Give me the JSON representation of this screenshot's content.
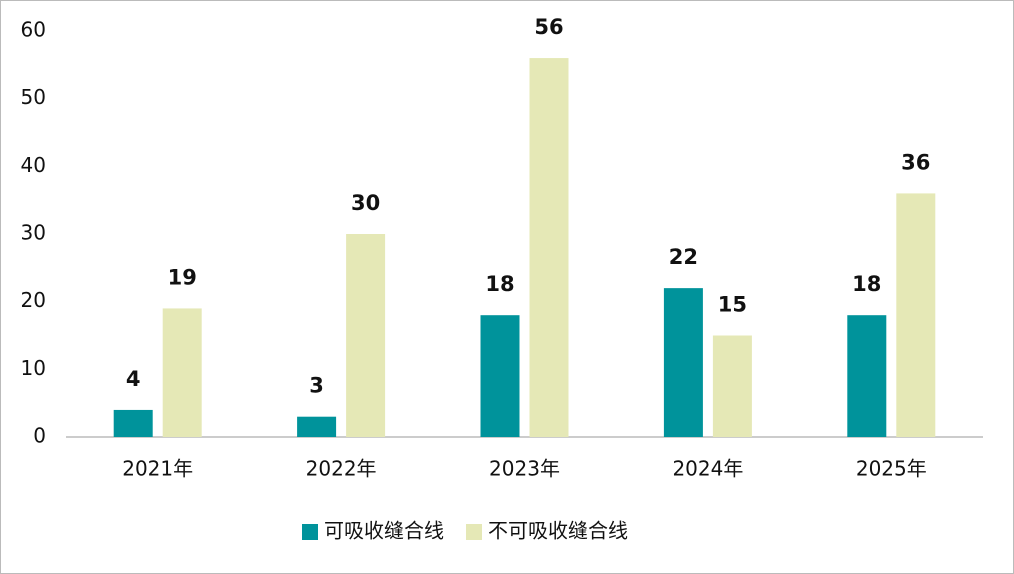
{
  "chart_data": {
    "type": "bar",
    "categories": [
      "2021年",
      "2022年",
      "2023年",
      "2024年",
      "2025年"
    ],
    "series": [
      {
        "name": "可吸收缝合线",
        "color": "#00939b",
        "values": [
          4,
          3,
          18,
          22,
          18
        ]
      },
      {
        "name": "不可吸收缝合线",
        "color": "#e5e8b6",
        "values": [
          19,
          30,
          56,
          15,
          36
        ]
      }
    ],
    "ylim": [
      0,
      60
    ],
    "yticks": [
      0,
      10,
      20,
      30,
      40,
      50,
      60
    ],
    "grid": false,
    "legend": "bottom"
  }
}
